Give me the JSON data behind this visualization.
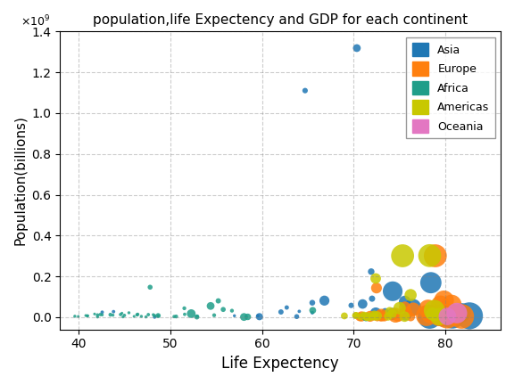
{
  "title": "population,life Expectency and GDP for each continent",
  "xlabel": "Life Expectency",
  "ylabel": "Population(billions)",
  "continents": [
    "Asia",
    "Europe",
    "Africa",
    "Americas",
    "Oceania"
  ],
  "colors": {
    "Asia": "#1f77b4",
    "Europe": "#ff7f0e",
    "Africa": "#1f9e89",
    "Americas": "#c8c800",
    "Oceania": "#e377c2"
  },
  "background_color": "#ffffff",
  "grid": true,
  "xlim": [
    38,
    86
  ],
  "ylim": [
    -60000000.0,
    1400000000.0
  ],
  "gdp_scale": 0.008,
  "data": [
    {
      "continent": "Asia",
      "lifeExp": 70.336,
      "pop": 1318683096,
      "gdpPercap": 4959.115
    },
    {
      "continent": "Asia",
      "lifeExp": 64.698,
      "pop": 1110396331,
      "gdpPercap": 2452.21
    },
    {
      "continent": "Asia",
      "lifeExp": 71.9,
      "pop": 223547000,
      "gdpPercap": 3540.652
    },
    {
      "continent": "Asia",
      "lifeExp": 78.4,
      "pop": 169270617,
      "gdpPercap": 36788.0
    },
    {
      "continent": "Asia",
      "lifeExp": 74.241,
      "pop": 127467972,
      "gdpPercap": 31656.067
    },
    {
      "continent": "Asia",
      "lifeExp": 75.563,
      "pop": 76511887,
      "gdpPercap": 11605.714
    },
    {
      "continent": "Asia",
      "lifeExp": 76.423,
      "pop": 49044790,
      "gdpPercap": 23348.14
    },
    {
      "continent": "Asia",
      "lifeExp": 71.993,
      "pop": 91077287,
      "gdpPercap": 3190.481
    },
    {
      "continent": "Asia",
      "lifeExp": 73.422,
      "pop": 27601038,
      "gdpPercap": 4184.548
    },
    {
      "continent": "Asia",
      "lifeExp": 62.698,
      "pop": 47761980,
      "gdpPercap": 1593.065
    },
    {
      "continent": "Asia",
      "lifeExp": 64.062,
      "pop": 28901790,
      "gdpPercap": 944.0
    },
    {
      "continent": "Asia",
      "lifeExp": 59.545,
      "pop": 6980412,
      "gdpPercap": 944.0
    },
    {
      "continent": "Asia",
      "lifeExp": 65.483,
      "pop": 22316000,
      "gdpPercap": 1091.359
    },
    {
      "continent": "Asia",
      "lifeExp": 57.0,
      "pop": 7274965,
      "gdpPercap": 759.351
    },
    {
      "continent": "Asia",
      "lifeExp": 66.803,
      "pop": 81513520,
      "gdpPercap": 8229.501
    },
    {
      "continent": "Asia",
      "lifeExp": 59.723,
      "pop": 2874127,
      "gdpPercap": 4184.548
    },
    {
      "continent": "Asia",
      "lifeExp": 63.785,
      "pop": 3204897,
      "gdpPercap": 2013.977
    },
    {
      "continent": "Asia",
      "lifeExp": 48.303,
      "pop": 708573,
      "gdpPercap": 944.0
    },
    {
      "continent": "Asia",
      "lifeExp": 42.592,
      "pop": 24821286,
      "gdpPercap": 975.563
    },
    {
      "continent": "Asia",
      "lifeExp": 72.396,
      "pop": 20378239,
      "gdpPercap": 10461.058
    },
    {
      "continent": "Asia",
      "lifeExp": 78.273,
      "pop": 2505559,
      "gdpPercap": 47306.99
    },
    {
      "continent": "Asia",
      "lifeExp": 79.762,
      "pop": 6980412,
      "gdpPercap": 39724.979
    },
    {
      "continent": "Asia",
      "lifeExp": 82.603,
      "pop": 6980412,
      "gdpPercap": 59265.477
    },
    {
      "continent": "Asia",
      "lifeExp": 80.745,
      "pop": 4553009,
      "gdpPercap": 49357.19
    },
    {
      "continent": "Asia",
      "lifeExp": 74.249,
      "pop": 16284741,
      "gdpPercap": 12057.499
    },
    {
      "continent": "Asia",
      "lifeExp": 69.721,
      "pop": 58147733,
      "gdpPercap": 2441.576
    },
    {
      "continent": "Asia",
      "lifeExp": 75.64,
      "pop": 17696293,
      "gdpPercap": 15389.925
    },
    {
      "continent": "Asia",
      "lifeExp": 81.757,
      "pop": 23174294,
      "gdpPercap": 28718.277
    },
    {
      "continent": "Asia",
      "lifeExp": 70.964,
      "pop": 65068149,
      "gdpPercap": 7458.396
    },
    {
      "continent": "Asia",
      "lifeExp": 65.483,
      "pop": 71158647,
      "gdpPercap": 2749.321
    },
    {
      "continent": "Asia",
      "lifeExp": 62.069,
      "pop": 25888145,
      "gdpPercap": 2280.769
    },
    {
      "continent": "Asia",
      "lifeExp": 43.828,
      "pop": 27499638,
      "gdpPercap": 974.58
    },
    {
      "continent": "Europe",
      "lifeExp": 79.829,
      "pop": 82400996,
      "gdpPercap": 32170.374
    },
    {
      "continent": "Europe",
      "lifeExp": 79.441,
      "pop": 60776238,
      "gdpPercap": 28569.72
    },
    {
      "continent": "Europe",
      "lifeExp": 80.657,
      "pop": 61083916,
      "gdpPercap": 33203.261
    },
    {
      "continent": "Europe",
      "lifeExp": 78.098,
      "pop": 40448191,
      "gdpPercap": 28821.064
    },
    {
      "continent": "Europe",
      "lifeExp": 79.406,
      "pop": 10228744,
      "gdpPercap": 35278.419
    },
    {
      "continent": "Europe",
      "lifeExp": 80.941,
      "pop": 9031088,
      "gdpPercap": 33859.748
    },
    {
      "continent": "Europe",
      "lifeExp": 79.483,
      "pop": 9042390,
      "gdpPercap": 33859.748
    },
    {
      "continent": "Europe",
      "lifeExp": 79.762,
      "pop": 16570613,
      "gdpPercap": 36797.933
    },
    {
      "continent": "Europe",
      "lifeExp": 78.332,
      "pop": 10706290,
      "gdpPercap": 22833.309
    },
    {
      "continent": "Europe",
      "lifeExp": 76.486,
      "pop": 38518241,
      "gdpPercap": 15389.925
    },
    {
      "continent": "Europe",
      "lifeExp": 72.476,
      "pop": 143319668,
      "gdpPercap": 9605.0
    },
    {
      "continent": "Europe",
      "lifeExp": 73.005,
      "pop": 10401500,
      "gdpPercap": 13171.639
    },
    {
      "continent": "Europe",
      "lifeExp": 74.543,
      "pop": 10228744,
      "gdpPercap": 18008.944
    },
    {
      "continent": "Europe",
      "lifeExp": 71.777,
      "pop": 4627926,
      "gdpPercap": 9786.535
    },
    {
      "continent": "Europe",
      "lifeExp": 75.748,
      "pop": 22276056,
      "gdpPercap": 10808.476
    },
    {
      "continent": "Europe",
      "lifeExp": 72.961,
      "pop": 7322858,
      "gdpPercap": 9253.896
    },
    {
      "continent": "Europe",
      "lifeExp": 70.645,
      "pop": 2009245,
      "gdpPercap": 6223.367
    },
    {
      "continent": "Europe",
      "lifeExp": 75.563,
      "pop": 48860000,
      "gdpPercap": 10808.476
    },
    {
      "continent": "Europe",
      "lifeExp": 80.196,
      "pop": 5468120,
      "gdpPercap": 49861.466
    },
    {
      "continent": "Europe",
      "lifeExp": 81.757,
      "pop": 4115771,
      "gdpPercap": 49861.466
    },
    {
      "continent": "Europe",
      "lifeExp": 78.885,
      "pop": 301139947,
      "gdpPercap": 42951.653
    },
    {
      "continent": "Europe",
      "lifeExp": 77.926,
      "pop": 8199783,
      "gdpPercap": 36126.493
    },
    {
      "continent": "Europe",
      "lifeExp": 79.313,
      "pop": 5447502,
      "gdpPercap": 33207.084
    },
    {
      "continent": "Europe",
      "lifeExp": 73.338,
      "pop": 2586443,
      "gdpPercap": 7092.923
    },
    {
      "continent": "Europe",
      "lifeExp": 76.195,
      "pop": 2009245,
      "gdpPercap": 6424.52
    },
    {
      "continent": "Europe",
      "lifeExp": 74.852,
      "pop": 3600523,
      "gdpPercap": 9253.896
    },
    {
      "continent": "Europe",
      "lifeExp": 72.567,
      "pop": 971449,
      "gdpPercap": 5937.029
    },
    {
      "continent": "Europe",
      "lifeExp": 70.845,
      "pop": 3942491,
      "gdpPercap": 8458.276
    },
    {
      "continent": "Africa",
      "lifeExp": 43.487,
      "pop": 12420476,
      "gdpPercap": 1217.033
    },
    {
      "continent": "Africa",
      "lifeExp": 48.692,
      "pop": 8078314,
      "gdpPercap": 2082.482
    },
    {
      "continent": "Africa",
      "lifeExp": 52.295,
      "pop": 17696293,
      "gdpPercap": 6223.367
    },
    {
      "continent": "Africa",
      "lifeExp": 42.082,
      "pop": 1639131,
      "gdpPercap": 759.351
    },
    {
      "continent": "Africa",
      "lifeExp": 54.406,
      "pop": 55379852,
      "gdpPercap": 4959.115
    },
    {
      "continent": "Africa",
      "lifeExp": 55.24,
      "pop": 80264543,
      "gdpPercap": 2280.769
    },
    {
      "continent": "Africa",
      "lifeExp": 56.728,
      "pop": 32160729,
      "gdpPercap": 1217.033
    },
    {
      "continent": "Africa",
      "lifeExp": 46.462,
      "pop": 14326203,
      "gdpPercap": 944.0
    },
    {
      "continent": "Africa",
      "lifeExp": 47.813,
      "pop": 147221399,
      "gdpPercap": 2013.977
    },
    {
      "continent": "Africa",
      "lifeExp": 46.859,
      "pop": 4369038,
      "gdpPercap": 759.351
    },
    {
      "continent": "Africa",
      "lifeExp": 40.802,
      "pop": 8390505,
      "gdpPercap": 625.0
    },
    {
      "continent": "Africa",
      "lifeExp": 50.651,
      "pop": 3800610,
      "gdpPercap": 1217.033
    },
    {
      "continent": "Africa",
      "lifeExp": 42.384,
      "pop": 13228180,
      "gdpPercap": 944.0
    },
    {
      "continent": "Africa",
      "lifeExp": 52.906,
      "pop": 1454867,
      "gdpPercap": 2082.482
    },
    {
      "continent": "Africa",
      "lifeExp": 48.159,
      "pop": 12463354,
      "gdpPercap": 759.351
    },
    {
      "continent": "Africa",
      "lifeExp": 39.613,
      "pop": 4906585,
      "gdpPercap": 759.351
    },
    {
      "continent": "Africa",
      "lifeExp": 58.04,
      "pop": 1292359,
      "gdpPercap": 4959.115
    },
    {
      "continent": "Africa",
      "lifeExp": 52.947,
      "pop": 4353666,
      "gdpPercap": 944.0
    },
    {
      "continent": "Africa",
      "lifeExp": 41.763,
      "pop": 15929988,
      "gdpPercap": 625.0
    },
    {
      "continent": "Africa",
      "lifeExp": 44.593,
      "pop": 13327079,
      "gdpPercap": 944.0
    },
    {
      "continent": "Africa",
      "lifeExp": 51.542,
      "pop": 43997828,
      "gdpPercap": 1217.033
    },
    {
      "continent": "Africa",
      "lifeExp": 58.453,
      "pop": 2012649,
      "gdpPercap": 3540.652
    },
    {
      "continent": "Africa",
      "lifeExp": 48.688,
      "pop": 6861985,
      "gdpPercap": 759.351
    },
    {
      "continent": "Africa",
      "lifeExp": 42.592,
      "pop": 11746035,
      "gdpPercap": 759.351
    },
    {
      "continent": "Africa",
      "lifeExp": 45.504,
      "pop": 21951498,
      "gdpPercap": 759.351
    },
    {
      "continent": "Africa",
      "lifeExp": 46.388,
      "pop": 12031795,
      "gdpPercap": 944.0
    },
    {
      "continent": "Africa",
      "lifeExp": 54.791,
      "pop": 9947814,
      "gdpPercap": 1217.033
    },
    {
      "continent": "Africa",
      "lifeExp": 40.963,
      "pop": 7064916,
      "gdpPercap": 625.0
    },
    {
      "continent": "Africa",
      "lifeExp": 50.43,
      "pop": 3242173,
      "gdpPercap": 944.0
    },
    {
      "continent": "Africa",
      "lifeExp": 44.741,
      "pop": 19951656,
      "gdpPercap": 625.0
    },
    {
      "continent": "Africa",
      "lifeExp": 44.848,
      "pop": 1472041,
      "gdpPercap": 625.0
    },
    {
      "continent": "Africa",
      "lifeExp": 48.303,
      "pop": 7554661,
      "gdpPercap": 944.0
    },
    {
      "continent": "Africa",
      "lifeExp": 45.009,
      "pop": 9118773,
      "gdpPercap": 944.0
    },
    {
      "continent": "Africa",
      "lifeExp": 65.528,
      "pop": 33757175,
      "gdpPercap": 3820.175
    },
    {
      "continent": "Africa",
      "lifeExp": 47.36,
      "pop": 1688359,
      "gdpPercap": 759.351
    },
    {
      "continent": "Africa",
      "lifeExp": 71.338,
      "pop": 1133066,
      "gdpPercap": 5937.029
    },
    {
      "continent": "Africa",
      "lifeExp": 42.082,
      "pop": 11185272,
      "gdpPercap": 944.0
    },
    {
      "continent": "Africa",
      "lifeExp": 51.579,
      "pop": 14326203,
      "gdpPercap": 944.0
    },
    {
      "continent": "Africa",
      "lifeExp": 55.778,
      "pop": 38139640,
      "gdpPercap": 2082.482
    },
    {
      "continent": "Africa",
      "lifeExp": 46.066,
      "pop": 4282586,
      "gdpPercap": 625.0
    },
    {
      "continent": "Africa",
      "lifeExp": 43.764,
      "pop": 10276158,
      "gdpPercap": 759.351
    },
    {
      "continent": "Africa",
      "lifeExp": 47.618,
      "pop": 12894865,
      "gdpPercap": 944.0
    },
    {
      "continent": "Africa",
      "lifeExp": 39.989,
      "pop": 4025394,
      "gdpPercap": 625.0
    },
    {
      "continent": "Africa",
      "lifeExp": 41.012,
      "pop": 6939688,
      "gdpPercap": 759.351
    },
    {
      "continent": "Americas",
      "lifeExp": 75.32,
      "pop": 301139947,
      "gdpPercap": 42951.653
    },
    {
      "continent": "Americas",
      "lifeExp": 72.39,
      "pop": 190010647,
      "gdpPercap": 9065.801
    },
    {
      "continent": "Americas",
      "lifeExp": 78.782,
      "pop": 33390141,
      "gdpPercap": 36319.235
    },
    {
      "continent": "Americas",
      "lifeExp": 74.994,
      "pop": 44227550,
      "gdpPercap": 12779.38
    },
    {
      "continent": "Americas",
      "lifeExp": 76.195,
      "pop": 108700891,
      "gdpPercap": 11977.575
    },
    {
      "continent": "Americas",
      "lifeExp": 78.553,
      "pop": 17468763,
      "gdpPercap": 13171.639
    },
    {
      "continent": "Americas",
      "lifeExp": 72.235,
      "pop": 12572928,
      "gdpPercap": 5728.354
    },
    {
      "continent": "Americas",
      "lifeExp": 70.259,
      "pop": 9319622,
      "gdpPercap": 3822.137
    },
    {
      "continent": "Americas",
      "lifeExp": 72.567,
      "pop": 6667147,
      "gdpPercap": 7092.923
    },
    {
      "continent": "Americas",
      "lifeExp": 71.421,
      "pop": 2780132,
      "gdpPercap": 5778.0
    },
    {
      "continent": "Americas",
      "lifeExp": 74.174,
      "pop": 17206000,
      "gdpPercap": 7092.923
    },
    {
      "continent": "Americas",
      "lifeExp": 72.235,
      "pop": 4133884,
      "gdpPercap": 5728.354
    },
    {
      "continent": "Americas",
      "lifeExp": 73.747,
      "pop": 4109086,
      "gdpPercap": 5778.0
    },
    {
      "continent": "Americas",
      "lifeExp": 70.198,
      "pop": 8502814,
      "gdpPercap": 3907.0
    },
    {
      "continent": "Americas",
      "lifeExp": 71.878,
      "pop": 2780132,
      "gdpPercap": 4184.548
    },
    {
      "continent": "Americas",
      "lifeExp": 71.1,
      "pop": 10118272,
      "gdpPercap": 4184.548
    },
    {
      "continent": "Americas",
      "lifeExp": 73.922,
      "pop": 27499638,
      "gdpPercap": 7092.923
    },
    {
      "continent": "Americas",
      "lifeExp": 70.755,
      "pop": 2780132,
      "gdpPercap": 4184.548
    },
    {
      "continent": "Americas",
      "lifeExp": 68.978,
      "pop": 6667147,
      "gdpPercap": 3907.0
    },
    {
      "continent": "Americas",
      "lifeExp": 71.752,
      "pop": 3100000,
      "gdpPercap": 5778.0
    },
    {
      "continent": "Americas",
      "lifeExp": 79.28,
      "pop": 2780132,
      "gdpPercap": 25185.009
    },
    {
      "continent": "Americas",
      "lifeExp": 78.273,
      "pop": 302000000,
      "gdpPercap": 42951.653
    },
    {
      "continent": "Americas",
      "lifeExp": 71.421,
      "pop": 3100000,
      "gdpPercap": 5778.0
    },
    {
      "continent": "Americas",
      "lifeExp": 75.537,
      "pop": 3242173,
      "gdpPercap": 9065.801
    },
    {
      "continent": "Americas",
      "lifeExp": 71.878,
      "pop": 2780132,
      "gdpPercap": 4184.548
    },
    {
      "continent": "Oceania",
      "lifeExp": 81.235,
      "pop": 20434176,
      "gdpPercap": 34435.367
    },
    {
      "continent": "Oceania",
      "lifeExp": 80.204,
      "pop": 4115771,
      "gdpPercap": 25185.009
    }
  ]
}
